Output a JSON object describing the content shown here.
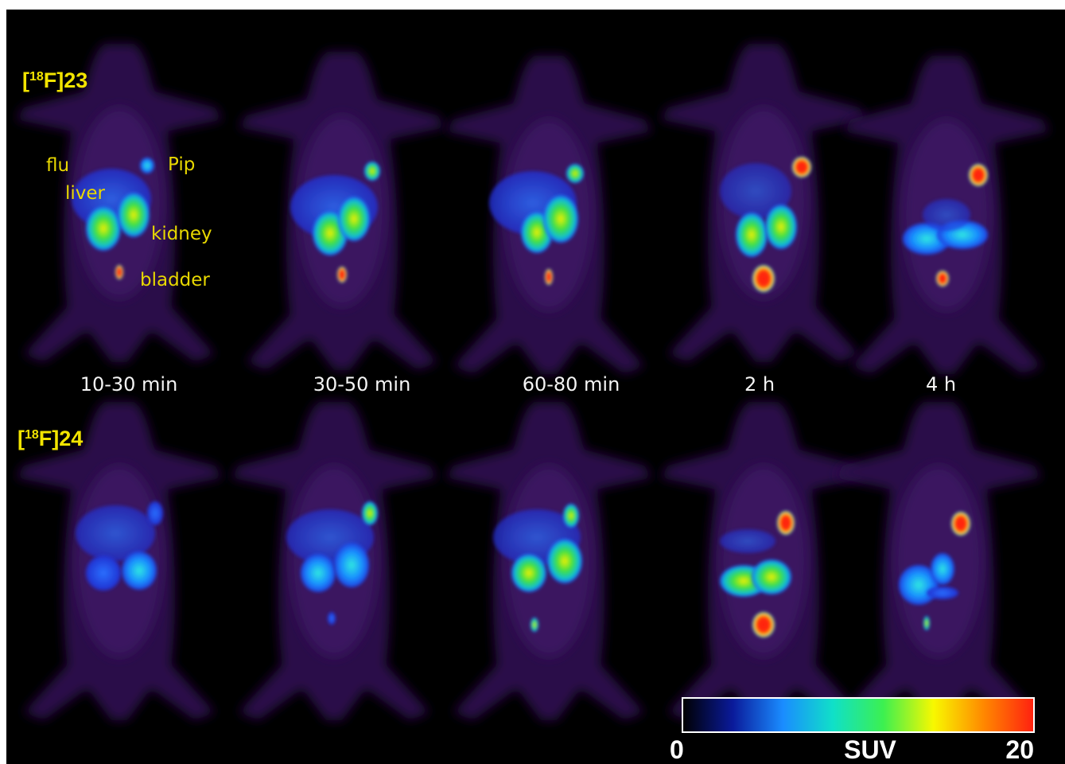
{
  "rows": [
    {
      "open": "[",
      "mass": "18",
      "name": "F]23"
    },
    {
      "open": "[",
      "mass": "18",
      "name": "F]24"
    }
  ],
  "time_points": [
    "10-30 min",
    "30-50 min",
    "60-80 min",
    "2 h",
    "4 h"
  ],
  "organ_labels": [
    "flu",
    "Pip",
    "liver",
    "kidney",
    "bladder"
  ],
  "colorbar": {
    "label": "SUV",
    "range": [
      0,
      20
    ],
    "ticks": [
      0,
      20
    ],
    "colors": [
      "#000000",
      "#0a1a9a",
      "#1a8cff",
      "#10e0c8",
      "#3cf050",
      "#f8f800",
      "#ff8800",
      "#ff2010"
    ]
  }
}
